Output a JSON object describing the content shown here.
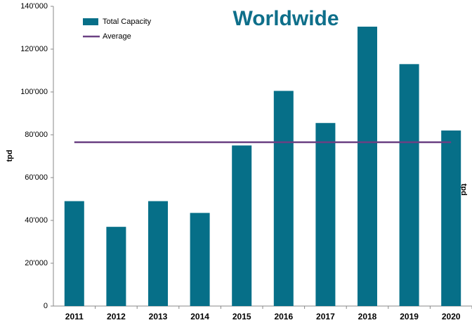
{
  "chart_data": {
    "type": "bar",
    "title": "Worldwide",
    "ylabel": "tpd",
    "y2label": "tpd",
    "categories": [
      "2011",
      "2012",
      "2013",
      "2014",
      "2015",
      "2016",
      "2017",
      "2018",
      "2019",
      "2020"
    ],
    "series": [
      {
        "name": "Total Capacity",
        "type": "bar",
        "color": "#066f88",
        "values": [
          49000,
          37000,
          49000,
          43500,
          75000,
          100500,
          85500,
          130500,
          113000,
          82000
        ]
      },
      {
        "name": "Average",
        "type": "line",
        "color": "#6b4183",
        "values": [
          76500,
          76500,
          76500,
          76500,
          76500,
          76500,
          76500,
          76500,
          76500,
          76500
        ]
      }
    ],
    "ylim": [
      0,
      140000
    ],
    "yticks": [
      0,
      {
        "value": 20000,
        "label": "20'000"
      },
      {
        "value": 40000,
        "label": "40'000"
      },
      {
        "value": 60000,
        "label": "60'000"
      },
      {
        "value": 80000,
        "label": "80'000"
      },
      {
        "value": 100000,
        "label": "100'000"
      },
      {
        "value": 120000,
        "label": "120'000"
      },
      {
        "value": 140000,
        "label": "140'000"
      }
    ],
    "legend": "upper left",
    "grid": false
  }
}
